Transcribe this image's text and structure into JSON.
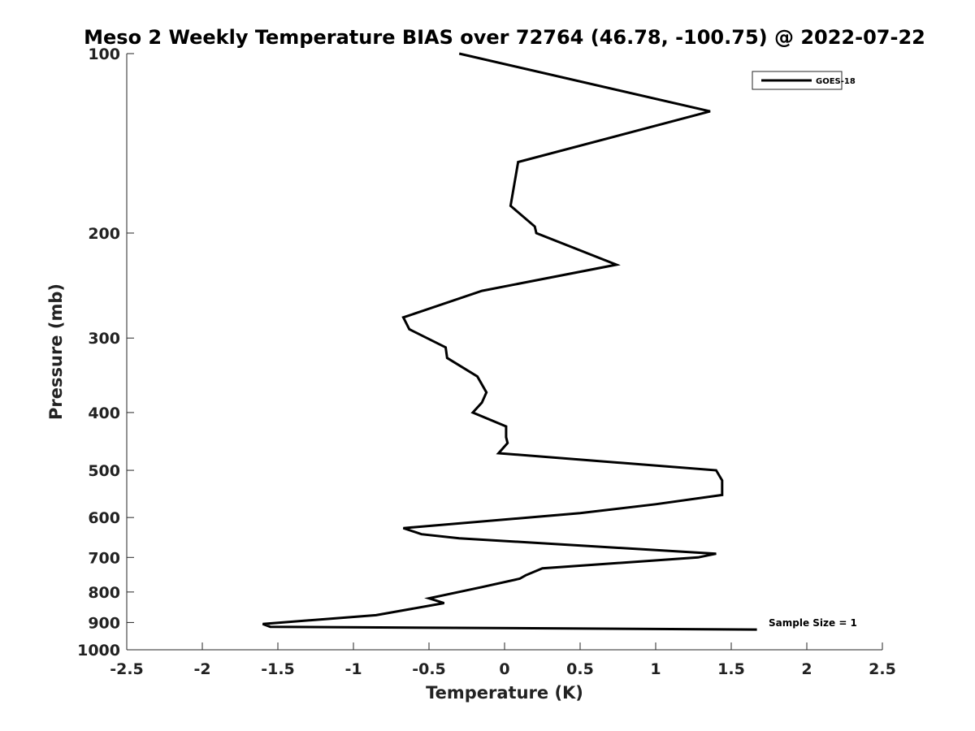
{
  "chart_data": {
    "type": "line",
    "title": "Meso 2 Weekly Temperature BIAS over 72764 (46.78, -100.75) @ 2022-07-22",
    "xlabel": "Temperature (K)",
    "ylabel": "Pressure (mb)",
    "xlim": [
      -2.5,
      2.5
    ],
    "ylim": [
      100,
      1000
    ],
    "yscale": "log",
    "y_reversed": true,
    "grid": false,
    "xticks": [
      -2.5,
      -2,
      -1.5,
      -1,
      -0.5,
      0,
      0.5,
      1,
      1.5,
      2,
      2.5
    ],
    "xtick_labels": [
      "-2.5",
      "-2",
      "-1.5",
      "-1",
      "-0.5",
      "0",
      "0.5",
      "1",
      "1.5",
      "2",
      "2.5"
    ],
    "yticks": [
      100,
      200,
      300,
      400,
      500,
      600,
      700,
      800,
      900,
      1000
    ],
    "ytick_labels": [
      "100",
      "200",
      "300",
      "400",
      "500",
      "600",
      "700",
      "800",
      "900",
      "1000"
    ],
    "legend": {
      "position": "top-right",
      "entries": [
        "GOES-18"
      ]
    },
    "annotation": "Sample Size = 1",
    "series": [
      {
        "name": "GOES-18",
        "color": "#000000",
        "points": [
          [
            -0.3,
            100
          ],
          [
            1.36,
            125
          ],
          [
            0.09,
            152
          ],
          [
            0.04,
            180
          ],
          [
            0.2,
            195
          ],
          [
            0.21,
            200
          ],
          [
            0.74,
            226
          ],
          [
            -0.15,
            250
          ],
          [
            -0.67,
            277
          ],
          [
            -0.63,
            290
          ],
          [
            -0.39,
            311
          ],
          [
            -0.38,
            324
          ],
          [
            -0.18,
            348
          ],
          [
            -0.12,
            370
          ],
          [
            -0.15,
            385
          ],
          [
            -0.21,
            400
          ],
          [
            0.01,
            422
          ],
          [
            0.01,
            440
          ],
          [
            0.02,
            450
          ],
          [
            -0.04,
            468
          ],
          [
            1.4,
            500
          ],
          [
            1.44,
            520
          ],
          [
            1.44,
            550
          ],
          [
            1.0,
            570
          ],
          [
            0.5,
            590
          ],
          [
            -0.67,
            625
          ],
          [
            -0.55,
            640
          ],
          [
            -0.3,
            650
          ],
          [
            1.4,
            690
          ],
          [
            1.28,
            700
          ],
          [
            0.25,
            730
          ],
          [
            0.14,
            750
          ],
          [
            0.1,
            760
          ],
          [
            -0.15,
            785
          ],
          [
            -0.5,
            820
          ],
          [
            -0.4,
            835
          ],
          [
            -0.85,
            875
          ],
          [
            -1.6,
            905
          ],
          [
            -1.55,
            915
          ],
          [
            1.67,
            925
          ]
        ]
      }
    ]
  }
}
